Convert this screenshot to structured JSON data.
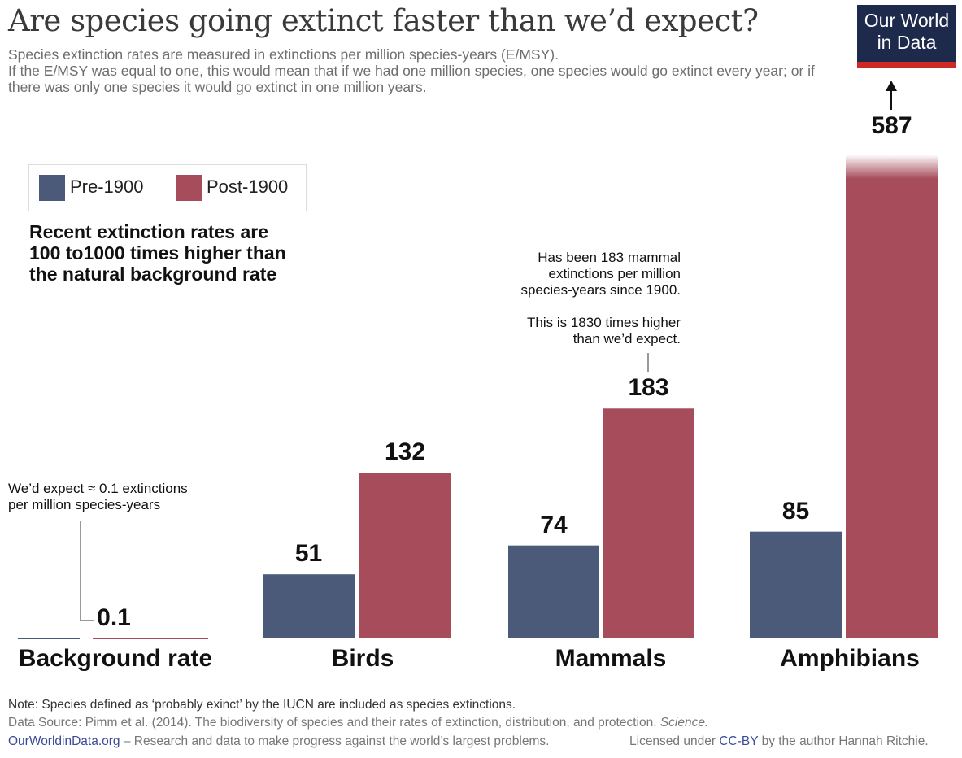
{
  "title": "Are species going extinct faster than we’d expect?",
  "subtitle": [
    "Species extinction rates are measured in extinctions per million species-years (E/MSY).",
    "If the E/MSY was equal to one, this would mean that if we had one million species, one species would go extinct every year; or if there was only one species it would go extinct in one million years."
  ],
  "logo": [
    "Our World",
    "in Data"
  ],
  "colors": {
    "pre": "#4a5a78",
    "post": "#a64c5b",
    "logo_bg": "#1d2a4c",
    "logo_bar": "#cd2a25"
  },
  "chart_data": {
    "type": "bar",
    "categories": [
      "Background rate",
      "Birds",
      "Mammals",
      "Amphibians"
    ],
    "series": [
      {
        "name": "Pre-1900",
        "values": [
          0.1,
          51,
          74,
          85
        ]
      },
      {
        "name": "Post-1900",
        "values": [
          0.1,
          132,
          183,
          587
        ]
      }
    ],
    "data_labels": [
      "0.1",
      "51",
      "132",
      "74",
      "183",
      "85",
      "587"
    ],
    "legend_position": "top-left",
    "axis_break": "Amphibians Post-1900 bar truncated with arrow",
    "annotations": {
      "headline": [
        "Recent extinction rates are",
        "100 to1000 times higher than",
        "the natural background rate"
      ],
      "background": [
        "We’d expect ≈ 0.1 extinctions",
        "per million species-years"
      ],
      "mammals": [
        "Has been 183 mammal",
        "extinctions per million",
        "species-years since 1900.",
        "",
        "This is 1830 times higher",
        "than we’d expect."
      ]
    }
  },
  "footer": {
    "note": "Note: Species defined as ‘probably exinct’ by the IUCN are included as species extinctions.",
    "source": "Data Source: Pimm et al. (2014). The biodiversity of species and their rates of extinction, distribution, and protection. ",
    "source_journal": "Science.",
    "site": "OurWorldinData.org",
    "tagline": " – Research and data to make progress against the world’s largest problems.",
    "license_pre": "Licensed under ",
    "license_link": "CC-BY",
    "license_post": " by the author Hannah Ritchie."
  }
}
